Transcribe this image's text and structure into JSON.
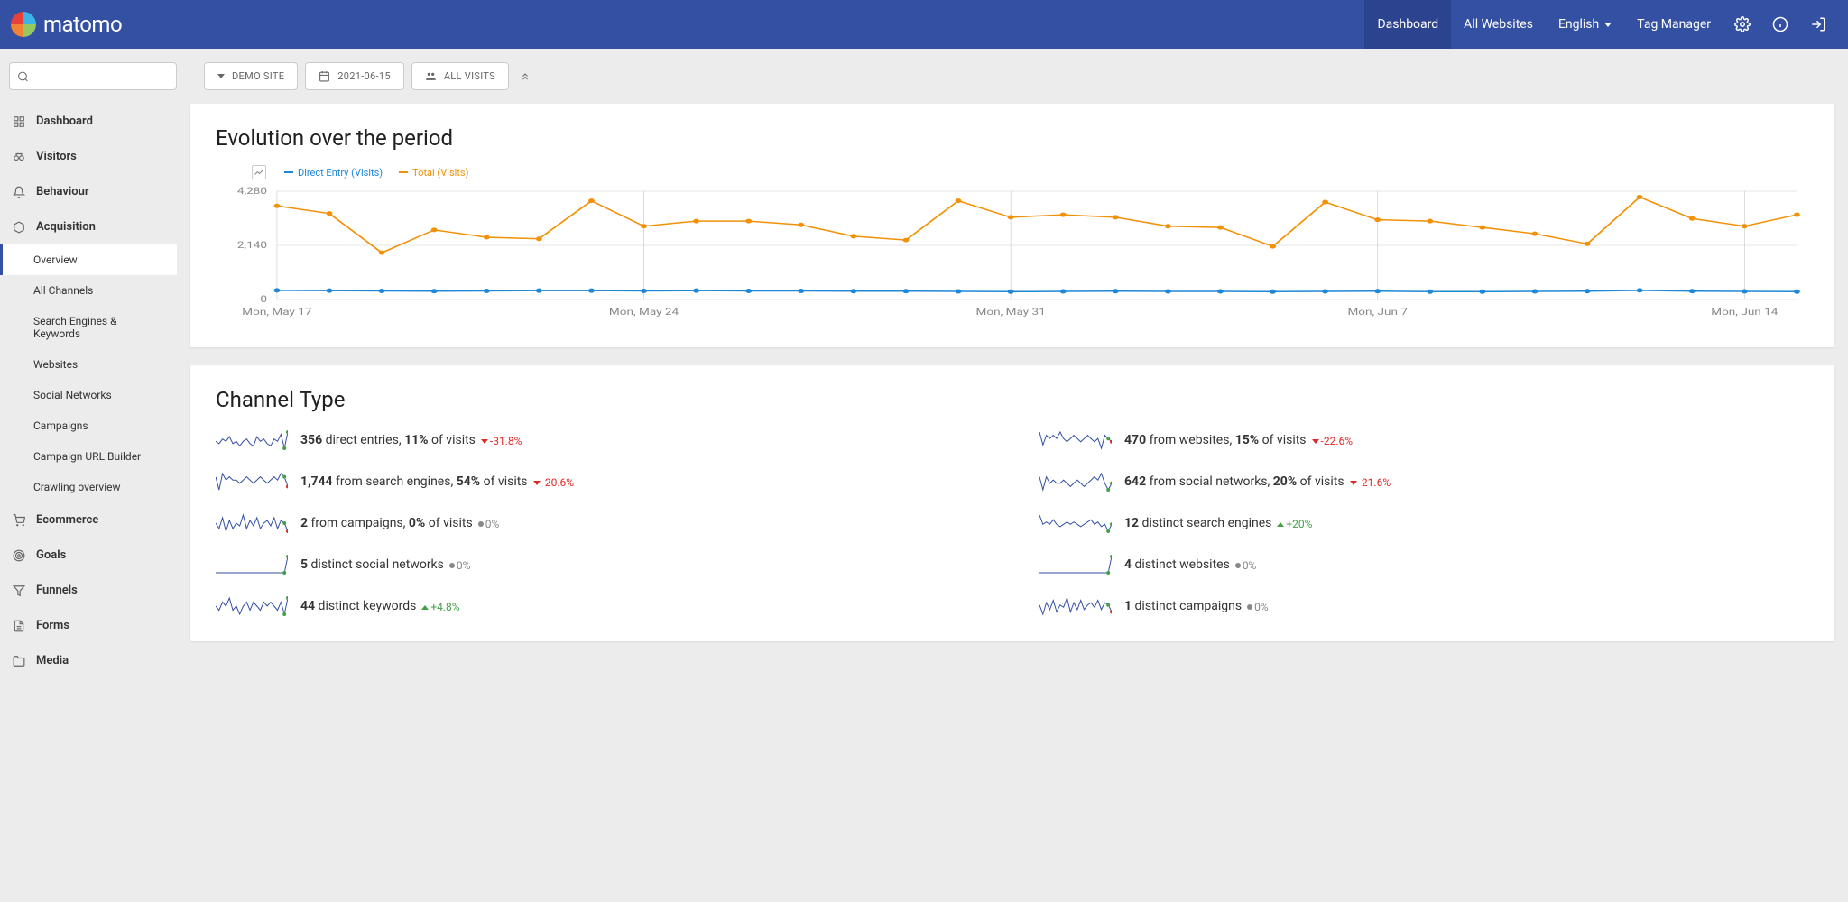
{
  "brand": "matomo",
  "topnav": {
    "items": [
      "Dashboard",
      "All Websites",
      "English",
      "Tag Manager"
    ],
    "active": 0
  },
  "toolbar": {
    "site": "DEMO SITE",
    "date": "2021-06-15",
    "segment": "ALL VISITS"
  },
  "sidebar": {
    "groups": [
      {
        "label": "Dashboard",
        "icon": "grid"
      },
      {
        "label": "Visitors",
        "icon": "binoculars"
      },
      {
        "label": "Behaviour",
        "icon": "bell"
      },
      {
        "label": "Acquisition",
        "icon": "cube",
        "open": true,
        "subs": [
          "Overview",
          "All Channels",
          "Search Engines & Keywords",
          "Websites",
          "Social Networks",
          "Campaigns",
          "Campaign URL Builder",
          "Crawling overview"
        ],
        "active_sub": 0
      },
      {
        "label": "Ecommerce",
        "icon": "cart"
      },
      {
        "label": "Goals",
        "icon": "target"
      },
      {
        "label": "Funnels",
        "icon": "funnel"
      },
      {
        "label": "Forms",
        "icon": "form"
      },
      {
        "label": "Media",
        "icon": "folder"
      }
    ]
  },
  "evolution": {
    "title": "Evolution over the period",
    "legend": [
      {
        "label": "Direct Entry (Visits)",
        "color": "#1e87d6"
      },
      {
        "label": "Total (Visits)",
        "color": "#f29007"
      }
    ],
    "y_ticks": [
      {
        "v": 4280,
        "label": "4,280"
      },
      {
        "v": 2140,
        "label": "2,140"
      },
      {
        "v": 0,
        "label": "0"
      }
    ],
    "y_max": 4280,
    "x_labels": [
      "Mon, May 17",
      "Mon, May 24",
      "Mon, May 31",
      "Mon, Jun 7",
      "Mon, Jun 14"
    ],
    "series": {
      "direct": [
        360,
        350,
        340,
        330,
        340,
        350,
        350,
        340,
        350,
        340,
        340,
        330,
        330,
        320,
        310,
        320,
        330,
        320,
        320,
        310,
        320,
        330,
        310,
        310,
        320,
        330,
        360,
        330,
        320,
        310
      ],
      "total": [
        3700,
        3400,
        1850,
        2750,
        2460,
        2400,
        3900,
        2900,
        3100,
        3100,
        2950,
        2500,
        2350,
        3900,
        3250,
        3350,
        3250,
        2900,
        2850,
        2100,
        3850,
        3150,
        3100,
        2850,
        2600,
        2200,
        4050,
        3200,
        2900,
        3350
      ]
    },
    "colors": {
      "direct": "#1e87d6",
      "total": "#f29007",
      "grid": "#cccccc",
      "axis_text": "#888888"
    }
  },
  "channel": {
    "title": "Channel Type",
    "rows": [
      {
        "sparkline": [
          5,
          4,
          6,
          5,
          7,
          4,
          5,
          3,
          5,
          6,
          4,
          3,
          7,
          5,
          6,
          4,
          3,
          6,
          5,
          8,
          2,
          9
        ],
        "value": "356",
        "label_a": " direct entries, ",
        "value_b": "11%",
        "label_b": " of visits",
        "delta": "-31.8%",
        "dir": "down"
      },
      {
        "sparkline": [
          7,
          3,
          6,
          5,
          6,
          5,
          7,
          5,
          4,
          5,
          6,
          5,
          4,
          5,
          6,
          5,
          4,
          5,
          2,
          6,
          5,
          4
        ],
        "value": "470",
        "label_a": " from websites, ",
        "value_b": "15%",
        "label_b": " of visits",
        "delta": "-22.6%",
        "dir": "down"
      },
      {
        "sparkline": [
          6,
          2,
          7,
          5,
          6,
          5,
          5,
          4,
          5,
          6,
          5,
          4,
          5,
          6,
          5,
          4,
          5,
          6,
          5,
          7,
          6,
          3
        ],
        "value": "1,744",
        "label_a": " from search engines, ",
        "value_b": "54%",
        "label_b": " of visits",
        "delta": "-20.6%",
        "dir": "down"
      },
      {
        "sparkline": [
          7,
          3,
          7,
          5,
          6,
          5,
          5,
          6,
          5,
          4,
          5,
          6,
          5,
          4,
          5,
          6,
          7,
          6,
          8,
          5,
          3,
          5
        ],
        "value": "642",
        "label_a": " from social networks, ",
        "value_b": "20%",
        "label_b": " of visits",
        "delta": "-21.6%",
        "dir": "down"
      },
      {
        "sparkline": [
          5,
          3,
          7,
          2,
          6,
          3,
          5,
          4,
          8,
          3,
          6,
          4,
          7,
          3,
          5,
          6,
          4,
          7,
          3,
          6,
          5,
          2
        ],
        "value": "2",
        "label_a": " from campaigns, ",
        "value_b": "0%",
        "label_b": " of visits",
        "delta": "0%",
        "dir": "flat"
      },
      {
        "sparkline": [
          9,
          5,
          6,
          5,
          7,
          5,
          4,
          5,
          6,
          5,
          6,
          5,
          4,
          5,
          6,
          7,
          5,
          6,
          4,
          5,
          2,
          5
        ],
        "value": "12",
        "label_a": " distinct search engines",
        "value_b": "",
        "label_b": "",
        "delta": "+20%",
        "dir": "up"
      },
      {
        "sparkline": [
          5,
          5,
          5,
          5,
          5,
          5,
          5,
          5,
          5,
          5,
          5,
          5,
          5,
          5,
          5,
          5,
          5,
          5,
          5,
          5,
          5,
          8
        ],
        "value": "5",
        "label_a": " distinct social networks",
        "value_b": "",
        "label_b": "",
        "delta": "0%",
        "dir": "flat"
      },
      {
        "sparkline": [
          5,
          5,
          5,
          5,
          5,
          5,
          5,
          5,
          5,
          5,
          5,
          5,
          5,
          5,
          5,
          5,
          5,
          5,
          5,
          5,
          5,
          8
        ],
        "value": "4",
        "label_a": " distinct websites",
        "value_b": "",
        "label_b": "",
        "delta": "0%",
        "dir": "flat"
      },
      {
        "sparkline": [
          5,
          4,
          6,
          5,
          7,
          4,
          5,
          3,
          5,
          6,
          4,
          6,
          5,
          4,
          6,
          5,
          6,
          5,
          4,
          6,
          3,
          7
        ],
        "value": "44",
        "label_a": " distinct keywords",
        "value_b": "",
        "label_b": "",
        "delta": "+4.8%",
        "dir": "up"
      },
      {
        "sparkline": [
          5,
          1,
          6,
          3,
          7,
          2,
          5,
          4,
          8,
          2,
          6,
          3,
          7,
          3,
          5,
          6,
          4,
          7,
          3,
          6,
          5,
          2
        ],
        "value": "1",
        "label_a": " distinct campaigns",
        "value_b": "",
        "label_b": "",
        "delta": "0%",
        "dir": "flat"
      }
    ],
    "sparkline_color": "#3450a3",
    "sparkline_last_up": "#43a047",
    "sparkline_last_down": "#e02a27"
  }
}
